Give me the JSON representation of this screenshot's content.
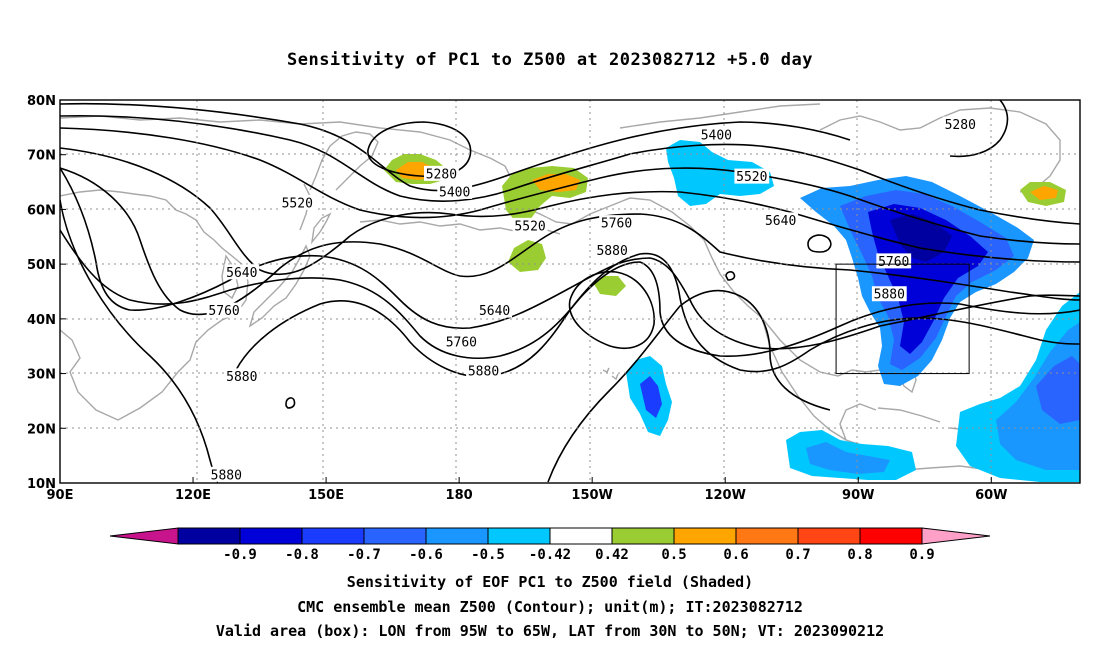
{
  "title": "Sensitivity of PC1 to Z500 at 2023082712 +5.0 day",
  "map": {
    "lat_labels": [
      "80N",
      "70N",
      "60N",
      "50N",
      "40N",
      "30N",
      "20N",
      "10N"
    ],
    "lon_labels": [
      "90E",
      "120E",
      "150E",
      "180",
      "150W",
      "120W",
      "90W",
      "60W"
    ],
    "grid": true
  },
  "contour_labels": [
    {
      "value": "5280",
      "lon": 176,
      "lat": 66.5
    },
    {
      "value": "5280",
      "lon": -67,
      "lat": 75.5
    },
    {
      "value": "5400",
      "lon": 179,
      "lat": 63.2
    },
    {
      "value": "5400",
      "lon": -122,
      "lat": 73.6
    },
    {
      "value": "5520",
      "lon": 143.5,
      "lat": 61.2
    },
    {
      "value": "5520",
      "lon": -164,
      "lat": 57
    },
    {
      "value": "5520",
      "lon": -114,
      "lat": 66
    },
    {
      "value": "5640",
      "lon": 131,
      "lat": 48.5
    },
    {
      "value": "5640",
      "lon": -172,
      "lat": 41.5
    },
    {
      "value": "5640",
      "lon": -107.5,
      "lat": 58
    },
    {
      "value": "5760",
      "lon": 127,
      "lat": 41.5
    },
    {
      "value": "5760",
      "lon": -179.5,
      "lat": 35.8
    },
    {
      "value": "5760",
      "lon": -144.5,
      "lat": 57.5
    },
    {
      "value": "5760",
      "lon": -82,
      "lat": 50.5
    },
    {
      "value": "5880",
      "lon": 131,
      "lat": 29.5
    },
    {
      "value": "5880",
      "lon": -174.5,
      "lat": 30.5
    },
    {
      "value": "5880",
      "lon": -145.5,
      "lat": 52.5
    },
    {
      "value": "5880",
      "lon": -83,
      "lat": 44.5
    },
    {
      "value": "5880",
      "lon": 127.5,
      "lat": 11.5
    }
  ],
  "valid_box": {
    "lon_min": -95,
    "lon_max": -65,
    "lat_min": 30,
    "lat_max": 50
  },
  "colorbar": {
    "labels": [
      "-0.9",
      "-0.8",
      "-0.7",
      "-0.6",
      "-0.5",
      "-0.42",
      "0.42",
      "0.5",
      "0.6",
      "0.7",
      "0.8",
      "0.9"
    ],
    "colors": [
      "#0000a0",
      "#0000d8",
      "#1a3cff",
      "#2a64ff",
      "#1a96ff",
      "#00c8ff",
      "#ffffff",
      "#9acd32",
      "#ffa500",
      "#ff7814",
      "#ff4614",
      "#ff0000"
    ],
    "low_color": "#c8148c",
    "high_color": "#ffa0c8"
  },
  "captions": [
    "Sensitivity of EOF PC1 to Z500 field (Shaded)",
    "CMC ensemble mean Z500 (Contour); unit(m); IT:2023082712",
    "Valid area (box): LON from 95W to 65W, LAT from 30N to 50N; VT: 2023090212"
  ]
}
